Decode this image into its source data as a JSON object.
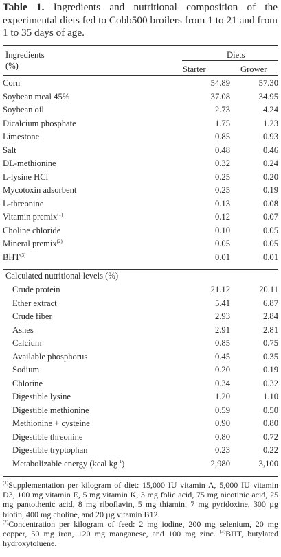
{
  "caption": {
    "label": "Table 1.",
    "text": "Ingredients and nutritional composition of the experimental diets fed to Cobb500 broilers from 1 to 21 and from 1 to 35 days of age."
  },
  "header": {
    "ingredients": "Ingredients",
    "unit": "(%)",
    "diets": "Diets",
    "starter": "Starter",
    "grower": "Grower"
  },
  "ingredients": [
    {
      "name": "Corn",
      "sup": "",
      "starter": "54.89",
      "grower": "57.30"
    },
    {
      "name": "Soybean meal 45%",
      "sup": "",
      "starter": "37.08",
      "grower": "34.95"
    },
    {
      "name": "Soybean oil",
      "sup": "",
      "starter": "2.73",
      "grower": "4.24"
    },
    {
      "name": "Dicalcium phosphate",
      "sup": "",
      "starter": "1.75",
      "grower": "1.23"
    },
    {
      "name": "Limestone",
      "sup": "",
      "starter": "0.85",
      "grower": "0.93"
    },
    {
      "name": "Salt",
      "sup": "",
      "starter": "0.48",
      "grower": "0.46"
    },
    {
      "name": "DL-methionine",
      "sup": "",
      "starter": "0.32",
      "grower": "0.24"
    },
    {
      "name": "L-lysine HCl",
      "sup": "",
      "starter": "0.25",
      "grower": "0.20"
    },
    {
      "name": "Mycotoxin adsorbent",
      "sup": "",
      "starter": "0.25",
      "grower": "0.19"
    },
    {
      "name": "L-threonine",
      "sup": "",
      "starter": "0.13",
      "grower": "0.08"
    },
    {
      "name": "Vitamin premix",
      "sup": "(1)",
      "starter": "0.12",
      "grower": "0.07"
    },
    {
      "name": "Choline chloride",
      "sup": "",
      "starter": "0.10",
      "grower": "0.05"
    },
    {
      "name": "Mineral premix",
      "sup": "(2)",
      "starter": "0.05",
      "grower": "0.05"
    },
    {
      "name": "BHT",
      "sup": "(3)",
      "starter": "0.01",
      "grower": "0.01"
    }
  ],
  "nutrition_heading": "Calculated nutritional levels (%)",
  "nutrition": [
    {
      "name": "Crude protein",
      "starter": "21.12",
      "grower": "20.11"
    },
    {
      "name": "Ether extract",
      "starter": "5.41",
      "grower": "6.87"
    },
    {
      "name": "Crude fiber",
      "starter": "2.93",
      "grower": "2.84"
    },
    {
      "name": "Ashes",
      "starter": "2.91",
      "grower": "2.81"
    },
    {
      "name": "Calcium",
      "starter": "0.85",
      "grower": "0.75"
    },
    {
      "name": "Available phosphorus",
      "starter": "0.45",
      "grower": "0.35"
    },
    {
      "name": "Sodium",
      "starter": "0.20",
      "grower": "0.19"
    },
    {
      "name": "Chlorine",
      "starter": "0.34",
      "grower": "0.32"
    },
    {
      "name": "Digestible lysine",
      "starter": "1.20",
      "grower": "1.10"
    },
    {
      "name": "Digestible methionine",
      "starter": "0.59",
      "grower": "0.50"
    },
    {
      "name": "Methionine + cysteine",
      "starter": "0.90",
      "grower": "0.80"
    },
    {
      "name": "Digestible threonine",
      "starter": "0.80",
      "grower": "0.72"
    },
    {
      "name": "Digestible tryptophan",
      "starter": "0.23",
      "grower": "0.22"
    }
  ],
  "energy": {
    "name": "Metabolizable energy (kcal kg",
    "sup": "-1",
    "close": ")",
    "starter": "2,980",
    "grower": "3,100"
  },
  "footnotes": {
    "fn1_mark": "(1)",
    "fn1": "Supplementation per kilogram of diet: 15,000 IU vitamin A, 5,000 IU vitamin D3, 100 mg vitamin E, 5 mg vitamin K, 3 mg folic acid, 75 mg nicotinic acid, 25 mg pantothenic acid, 8 mg riboflavin, 5 mg thiamin, 7 mg pyridoxine, 300 µg biotin, 400 mg choline, and 20 µg vitamin B12.",
    "fn2_mark": "(2)",
    "fn2": "Concentration per kilogram of feed: 2 mg iodine, 200 mg selenium, 20 mg copper, 50 mg iron, 120 mg manganese, and 100 mg zinc.",
    "fn3_mark": "(3)",
    "fn3": "BHT, butylated hydroxytoluene."
  }
}
